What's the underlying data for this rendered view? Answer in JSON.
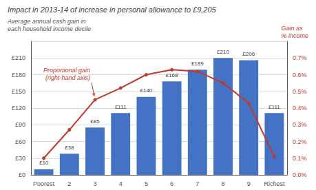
{
  "chart_data": {
    "type": "bar",
    "title": "Impact in 2013-14 of increase in personal allowance to £9,205",
    "y_label": "Average annual cash gain in\neach household income decile",
    "y2_label": "Gain as\n% income",
    "annotation": "Proportional gain\n(right-hand axis)",
    "categories": [
      "Poorest",
      "2",
      "3",
      "4",
      "5",
      "6",
      "7",
      "8",
      "9",
      "Richest"
    ],
    "series": [
      {
        "type": "bar",
        "color": "#4472C4",
        "data_labels": true,
        "values": [
          10,
          38,
          85,
          111,
          140,
          168,
          189,
          210,
          206,
          111
        ],
        "value_labels": [
          "£10",
          "£38",
          "£85",
          "£111",
          "£140",
          "£168",
          "£189",
          "£210",
          "£206",
          "£111"
        ]
      },
      {
        "type": "line",
        "color": "#C0392B",
        "axis": "y2",
        "marker": "circle",
        "values": [
          0.1,
          0.27,
          0.45,
          0.52,
          0.6,
          0.63,
          0.62,
          0.55,
          0.43,
          0.11
        ]
      }
    ],
    "ylim": [
      0,
      240
    ],
    "yticks": [
      {
        "value": 0,
        "label": "£0"
      },
      {
        "value": 30,
        "label": "£30"
      },
      {
        "value": 60,
        "label": "£60"
      },
      {
        "value": 90,
        "label": "£90"
      },
      {
        "value": 120,
        "label": "£120"
      },
      {
        "value": 150,
        "label": "£150"
      },
      {
        "value": 180,
        "label": "£180"
      },
      {
        "value": 210,
        "label": "£210"
      }
    ],
    "y2lim": [
      0.0,
      0.8
    ],
    "y2ticks": [
      {
        "value": 0.0,
        "label": "0.0%"
      },
      {
        "value": 0.1,
        "label": "0.1%"
      },
      {
        "value": 0.2,
        "label": "0.2%"
      },
      {
        "value": 0.3,
        "label": "0.3%"
      },
      {
        "value": 0.4,
        "label": "0.4%"
      },
      {
        "value": 0.5,
        "label": "0.5%"
      },
      {
        "value": 0.6,
        "label": "0.6%"
      },
      {
        "value": 0.7,
        "label": "0.7%"
      }
    ],
    "grid": true
  }
}
